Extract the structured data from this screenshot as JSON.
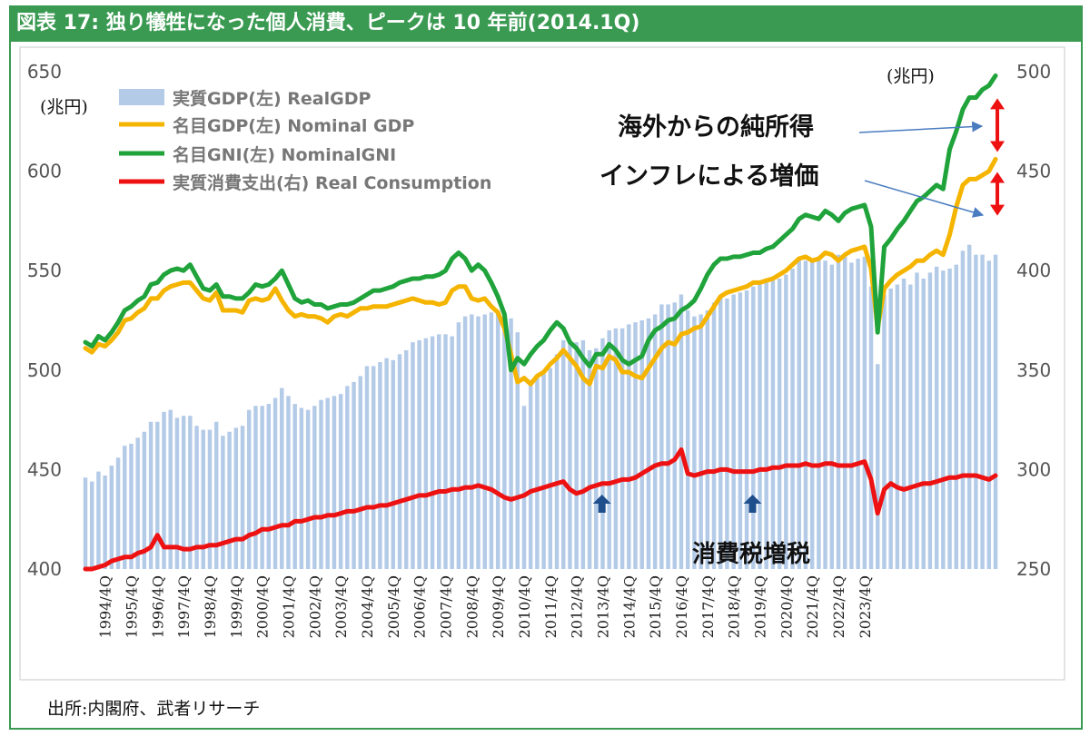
{
  "header": {
    "title": "図表 17: 独り犠牲になった個人消費、ピークは 10 年前(2014.1Q)"
  },
  "footer": {
    "source": "出所:内閣府、武者リサーチ"
  },
  "annotations": {
    "unit_left": "(兆円)",
    "unit_right": "(兆円)",
    "net_income_abroad": "海外からの純所得",
    "inflation_value": "インフレによる増価",
    "consumption_tax": "消費税増税"
  },
  "colors": {
    "real_gdp": "#b4cbe8",
    "nominal_gdp": "#f5b400",
    "nominal_gni": "#1fa33a",
    "real_consumption": "#ee1111",
    "tax_arrow": "#1f4e8c",
    "callout_arrow": "#4a7cc0",
    "title_bar": "#3a9a52"
  },
  "chart_data": {
    "type": "bar",
    "legend_position": "top-left",
    "grid": false,
    "x_start": "1994Q1",
    "x_end": "2023Q4",
    "tick_labels": [
      "1994/4Q",
      "1995/4Q",
      "1996/4Q",
      "1997/4Q",
      "1998/4Q",
      "1999/4Q",
      "2000/4Q",
      "2001/4Q",
      "2002/4Q",
      "2003/4Q",
      "2004/4Q",
      "2005/4Q",
      "2006/4Q",
      "2007/4Q",
      "2008/4Q",
      "2009/4Q",
      "2010/4Q",
      "2011/4Q",
      "2012/4Q",
      "2013/4Q",
      "2014/4Q",
      "2015/4Q",
      "2016/4Q",
      "2017/4Q",
      "2018/4Q",
      "2019/4Q",
      "2020/4Q",
      "2021/4Q",
      "2022/4Q",
      "2023/4Q"
    ],
    "y_left": {
      "min": 400,
      "max": 650,
      "ticks": [
        400,
        450,
        500,
        550,
        600,
        650
      ]
    },
    "y_right": {
      "min": 250,
      "max": 500,
      "ticks": [
        250,
        300,
        350,
        400,
        450,
        500
      ]
    },
    "series": [
      {
        "name": "実質GDP(左) RealGDP",
        "type": "bar",
        "axis": "left",
        "values": [
          446,
          444,
          449,
          447,
          452,
          456,
          462,
          463,
          466,
          469,
          474,
          474,
          479,
          480,
          476,
          477,
          477,
          472,
          470,
          470,
          474,
          467,
          469,
          471,
          472,
          480,
          482,
          482,
          483,
          486,
          491,
          487,
          483,
          481,
          480,
          482,
          485,
          486,
          487,
          488,
          492,
          494,
          497,
          502,
          502,
          504,
          506,
          505,
          508,
          510,
          514,
          515,
          516,
          517,
          518,
          518,
          517,
          524,
          527,
          528,
          527,
          528,
          529,
          530,
          527,
          526,
          519,
          482,
          495,
          497,
          498,
          501,
          508,
          515,
          515,
          514,
          515,
          510,
          511,
          516,
          520,
          521,
          521,
          523,
          524,
          525,
          526,
          528,
          533,
          533,
          534,
          538,
          530,
          527,
          528,
          530,
          534,
          537,
          536,
          538,
          539,
          540,
          542,
          543,
          544,
          545,
          546,
          548,
          551,
          555,
          555,
          556,
          557,
          555,
          553,
          558,
          557,
          554,
          556,
          557,
          542,
          503,
          538,
          541,
          543,
          546,
          543,
          549,
          546,
          549,
          552,
          550,
          551,
          553,
          560,
          563,
          558,
          558,
          555,
          558
        ]
      },
      {
        "name": "名目GDP(左) Nominal GDP",
        "type": "line",
        "axis": "left",
        "values": [
          511,
          509,
          513,
          512,
          515,
          519,
          525,
          526,
          529,
          531,
          536,
          536,
          540,
          542,
          543,
          544,
          544,
          540,
          536,
          535,
          539,
          530,
          530,
          530,
          529,
          535,
          536,
          535,
          536,
          541,
          535,
          530,
          527,
          528,
          527,
          527,
          526,
          524,
          527,
          528,
          527,
          529,
          531,
          531,
          532,
          532,
          532,
          533,
          534,
          535,
          536,
          535,
          534,
          534,
          533,
          534,
          540,
          542,
          542,
          536,
          535,
          536,
          532,
          529,
          521,
          508,
          494,
          496,
          493,
          497,
          499,
          503,
          506,
          510,
          506,
          502,
          496,
          493,
          502,
          501,
          507,
          505,
          499,
          499,
          497,
          496,
          501,
          506,
          511,
          514,
          513,
          518,
          519,
          521,
          522,
          527,
          532,
          537,
          539,
          540,
          541,
          542,
          544,
          544,
          545,
          546,
          548,
          550,
          553,
          556,
          557,
          555,
          556,
          559,
          558,
          555,
          558,
          560,
          561,
          562,
          551,
          521,
          541,
          545,
          548,
          550,
          552,
          555,
          555,
          558,
          560,
          558,
          568,
          582,
          593,
          596,
          596,
          598,
          600,
          606
        ]
      },
      {
        "name": "名目GNI(左) NominalGNI",
        "type": "line",
        "axis": "left",
        "values": [
          514,
          512,
          517,
          515,
          519,
          524,
          530,
          532,
          535,
          537,
          543,
          544,
          548,
          550,
          551,
          550,
          553,
          547,
          541,
          540,
          543,
          537,
          537,
          536,
          536,
          539,
          543,
          542,
          543,
          546,
          550,
          543,
          536,
          534,
          535,
          533,
          533,
          531,
          532,
          533,
          533,
          534,
          536,
          538,
          540,
          540,
          541,
          542,
          544,
          545,
          546,
          546,
          547,
          547,
          548,
          550,
          556,
          559,
          556,
          550,
          553,
          550,
          544,
          537,
          528,
          500,
          506,
          503,
          508,
          512,
          515,
          520,
          524,
          521,
          514,
          511,
          506,
          502,
          508,
          508,
          513,
          510,
          505,
          503,
          505,
          507,
          515,
          520,
          522,
          525,
          526,
          530,
          532,
          535,
          541,
          548,
          553,
          556,
          556,
          557,
          557,
          558,
          559,
          559,
          561,
          562,
          565,
          568,
          571,
          576,
          578,
          577,
          576,
          580,
          578,
          575,
          579,
          581,
          582,
          583,
          572,
          519,
          562,
          566,
          571,
          575,
          580,
          585,
          587,
          590,
          593,
          591,
          611,
          620,
          631,
          637,
          637,
          641,
          643,
          648
        ]
      },
      {
        "name": "実質消費支出(右) Real Consumption",
        "type": "line",
        "axis": "right",
        "values": [
          250,
          250,
          251,
          252,
          254,
          255,
          256,
          256,
          258,
          259,
          261,
          267,
          261,
          261,
          261,
          260,
          260,
          261,
          261,
          262,
          262,
          263,
          264,
          265,
          265,
          267,
          268,
          270,
          270,
          271,
          272,
          272,
          274,
          274,
          275,
          276,
          276,
          277,
          277,
          278,
          279,
          279,
          280,
          281,
          281,
          282,
          282,
          283,
          284,
          285,
          286,
          287,
          287,
          288,
          289,
          289,
          290,
          290,
          291,
          291,
          292,
          291,
          290,
          288,
          286,
          285,
          286,
          287,
          289,
          290,
          291,
          292,
          293,
          294,
          290,
          288,
          289,
          291,
          292,
          293,
          293,
          294,
          295,
          295,
          296,
          298,
          300,
          302,
          303,
          303,
          305,
          310,
          298,
          297,
          298,
          299,
          299,
          300,
          300,
          299,
          299,
          299,
          299,
          300,
          300,
          301,
          301,
          302,
          302,
          302,
          303,
          302,
          302,
          303,
          303,
          302,
          302,
          302,
          303,
          304,
          295,
          278,
          290,
          293,
          291,
          290,
          291,
          292,
          293,
          293,
          294,
          295,
          296,
          296,
          297,
          297,
          297,
          296,
          295,
          297
        ]
      }
    ],
    "tax_hike_quarters": [
      "2014Q1",
      "2019Q4"
    ],
    "gap_arrows": [
      "net_income_abroad",
      "inflation_value"
    ]
  }
}
